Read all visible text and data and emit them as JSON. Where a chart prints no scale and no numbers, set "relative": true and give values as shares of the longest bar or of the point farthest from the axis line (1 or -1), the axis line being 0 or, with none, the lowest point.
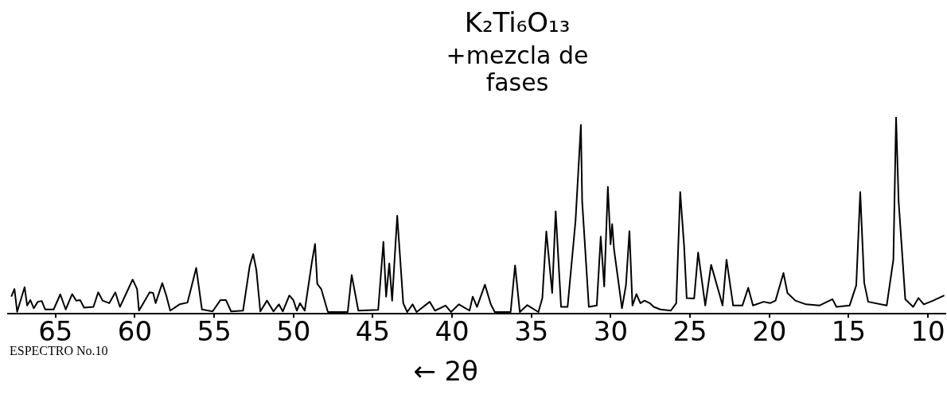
{
  "chart_data": {
    "type": "line",
    "title": "K₂Ti₆O₁₃",
    "subtitle": "+mezcla de fases",
    "xlabel": "← 2θ",
    "annotations": [
      "ESPECTRO No.10"
    ],
    "relative": true,
    "color": "#000000",
    "grid": false,
    "legend": false,
    "xlim": [
      68,
      8.9
    ],
    "xticks": [
      65,
      60,
      55,
      50,
      45,
      40,
      35,
      30,
      25,
      20,
      15,
      10
    ],
    "x": [
      67.79,
      67.59,
      67.42,
      66.95,
      66.79,
      66.59,
      66.37,
      66.12,
      65.87,
      65.65,
      65.12,
      64.7,
      64.36,
      63.95,
      63.7,
      63.45,
      63.2,
      62.61,
      62.31,
      62.03,
      61.61,
      61.23,
      60.94,
      60.53,
      60.14,
      59.86,
      59.74,
      59.35,
      59.07,
      58.85,
      58.69,
      58.27,
      58.02,
      57.77,
      57.18,
      56.68,
      56.13,
      55.77,
      55.1,
      54.6,
      54.26,
      53.93,
      53.18,
      52.76,
      52.54,
      52.34,
      52.09,
      51.67,
      51.26,
      50.92,
      50.67,
      50.26,
      50.01,
      49.79,
      49.59,
      49.29,
      48.84,
      48.64,
      48.5,
      48.25,
      47.83,
      46.58,
      46.33,
      45.91,
      44.66,
      44.33,
      44.16,
      43.96,
      43.78,
      43.46,
      43.08,
      42.83,
      42.49,
      42.24,
      41.41,
      41.08,
      40.41,
      40.07,
      39.57,
      38.9,
      38.7,
      38.43,
      37.93,
      37.56,
      37.31,
      36.31,
      36.03,
      35.73,
      35.26,
      34.56,
      34.31,
      34.06,
      33.69,
      33.47,
      33.13,
      32.72,
      32.22,
      31.88,
      31.8,
      31.38,
      30.88,
      30.63,
      30.41,
      30.18,
      30.01,
      29.91,
      29.79,
      29.29,
      29.04,
      28.82,
      28.63,
      28.38,
      28.13,
      27.87,
      27.54,
      27.29,
      26.87,
      26.21,
      25.87,
      25.62,
      25.37,
      25.21,
      24.74,
      24.49,
      24.04,
      23.67,
      23.12,
      22.95,
      22.7,
      22.28,
      21.7,
      21.33,
      21.03,
      20.36,
      19.95,
      19.61,
      19.11,
      18.86,
      18.36,
      17.69,
      16.85,
      16.02,
      15.77,
      14.94,
      14.52,
      14.27,
      14.02,
      13.77,
      12.6,
      12.18,
      12.01,
      11.85,
      11.43,
      10.93,
      10.6,
      10.26,
      9.67,
      8.97
    ],
    "values": [
      0.087,
      0.126,
      0.01,
      0.135,
      0.042,
      0.07,
      0.028,
      0.061,
      0.065,
      0.022,
      0.022,
      0.099,
      0.022,
      0.1,
      0.067,
      0.07,
      0.031,
      0.035,
      0.109,
      0.067,
      0.054,
      0.109,
      0.035,
      0.106,
      0.174,
      0.126,
      0.016,
      0.07,
      0.109,
      0.106,
      0.054,
      0.156,
      0.093,
      0.016,
      0.048,
      0.057,
      0.233,
      0.022,
      0.012,
      0.07,
      0.07,
      0.012,
      0.016,
      0.243,
      0.303,
      0.223,
      0.012,
      0.067,
      0.012,
      0.048,
      0.012,
      0.093,
      0.07,
      0.016,
      0.054,
      0.016,
      0.262,
      0.355,
      0.152,
      0.126,
      0.009,
      0.009,
      0.197,
      0.016,
      0.02,
      0.366,
      0.087,
      0.256,
      0.067,
      0.498,
      0.054,
      0.009,
      0.048,
      0.009,
      0.061,
      0.016,
      0.042,
      0.009,
      0.048,
      0.016,
      0.087,
      0.035,
      0.148,
      0.048,
      0.009,
      0.009,
      0.246,
      0.009,
      0.044,
      0.009,
      0.08,
      0.418,
      0.106,
      0.521,
      0.035,
      0.035,
      0.47,
      0.96,
      0.573,
      0.035,
      0.042,
      0.392,
      0.139,
      0.645,
      0.353,
      0.456,
      0.327,
      0.028,
      0.145,
      0.42,
      0.042,
      0.1,
      0.054,
      0.067,
      0.054,
      0.035,
      0.022,
      0.016,
      0.054,
      0.619,
      0.34,
      0.08,
      0.078,
      0.311,
      0.042,
      0.249,
      0.093,
      0.042,
      0.275,
      0.042,
      0.042,
      0.132,
      0.042,
      0.061,
      0.054,
      0.067,
      0.207,
      0.106,
      0.067,
      0.048,
      0.042,
      0.074,
      0.035,
      0.042,
      0.145,
      0.619,
      0.158,
      0.061,
      0.042,
      0.275,
      1,
      0.573,
      0.074,
      0.035,
      0.08,
      0.048,
      0.067,
      0.093
    ]
  }
}
